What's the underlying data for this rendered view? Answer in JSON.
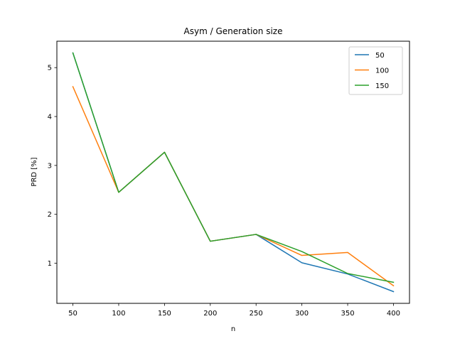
{
  "chart_data": {
    "type": "line",
    "title": "Asym / Generation size",
    "xlabel": "n",
    "ylabel": "PRD [%]",
    "x": [
      50,
      100,
      150,
      200,
      250,
      300,
      350,
      400
    ],
    "xticks": [
      50,
      100,
      150,
      200,
      250,
      300,
      350,
      400
    ],
    "yticks": [
      1,
      2,
      3,
      4,
      5
    ],
    "xlim": [
      32.5,
      417.5
    ],
    "ylim": [
      0.18,
      5.54
    ],
    "grid": false,
    "legend_position": "top-right",
    "series": [
      {
        "name": "50",
        "color": "#1f77b4",
        "values": [
          5.3,
          2.45,
          3.27,
          1.45,
          1.59,
          1.01,
          0.78,
          0.42
        ]
      },
      {
        "name": "100",
        "color": "#ff7f0e",
        "values": [
          4.61,
          2.45,
          3.27,
          1.45,
          1.59,
          1.16,
          1.22,
          0.54
        ]
      },
      {
        "name": "150",
        "color": "#2ca02c",
        "values": [
          5.3,
          2.45,
          3.27,
          1.45,
          1.59,
          1.24,
          0.79,
          0.61
        ]
      }
    ]
  }
}
